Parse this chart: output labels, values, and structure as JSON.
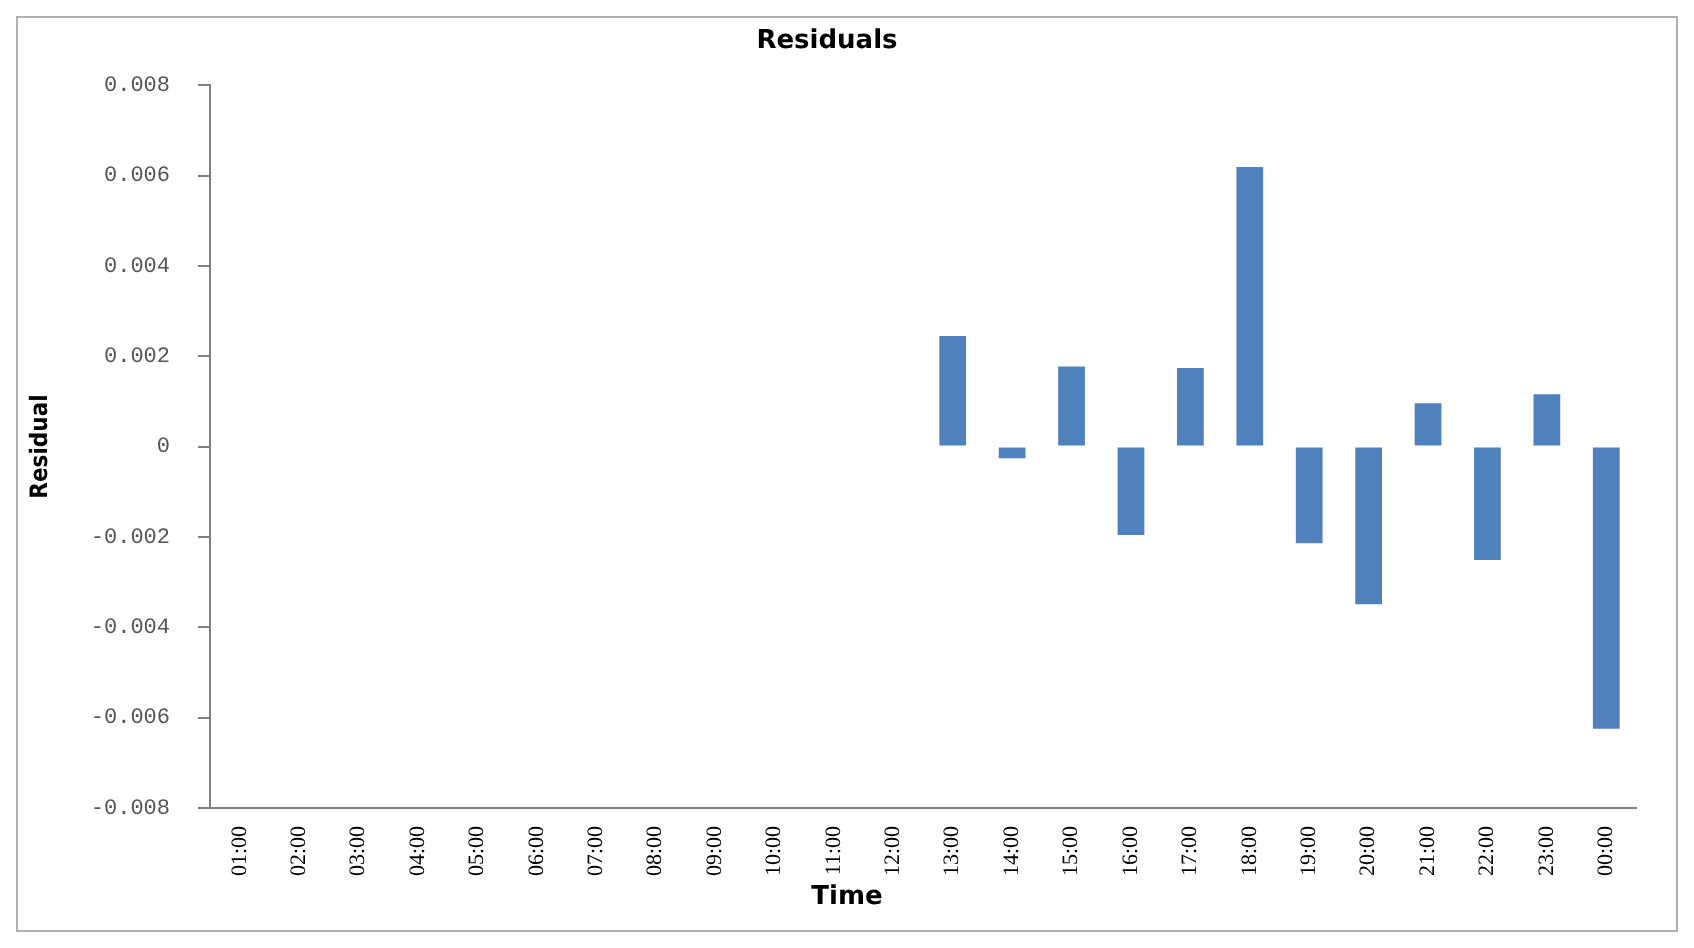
{
  "chart_data": {
    "type": "bar",
    "title": "Residuals",
    "xlabel": "Time",
    "ylabel": "Residual",
    "categories": [
      "01:00",
      "02:00",
      "03:00",
      "04:00",
      "05:00",
      "06:00",
      "07:00",
      "08:00",
      "09:00",
      "10:00",
      "11:00",
      "12:00",
      "13:00",
      "14:00",
      "15:00",
      "16:00",
      "17:00",
      "18:00",
      "19:00",
      "20:00",
      "21:00",
      "22:00",
      "23:00",
      "00:00"
    ],
    "values": [
      0,
      0,
      0,
      0,
      0,
      0,
      0,
      0,
      0,
      0,
      0,
      0,
      0.00245,
      -0.00026,
      0.00177,
      -0.00196,
      0.00174,
      0.00619,
      -0.00214,
      -0.00349,
      0.00096,
      -0.00251,
      0.00116,
      -0.00625
    ],
    "color": "#4f81bd",
    "ylim": [
      -0.008,
      0.008
    ],
    "yticks": [
      -0.008,
      -0.006,
      -0.004,
      -0.002,
      0,
      0.002,
      0.004,
      0.006,
      0.008
    ],
    "grid": false,
    "legend": false
  }
}
